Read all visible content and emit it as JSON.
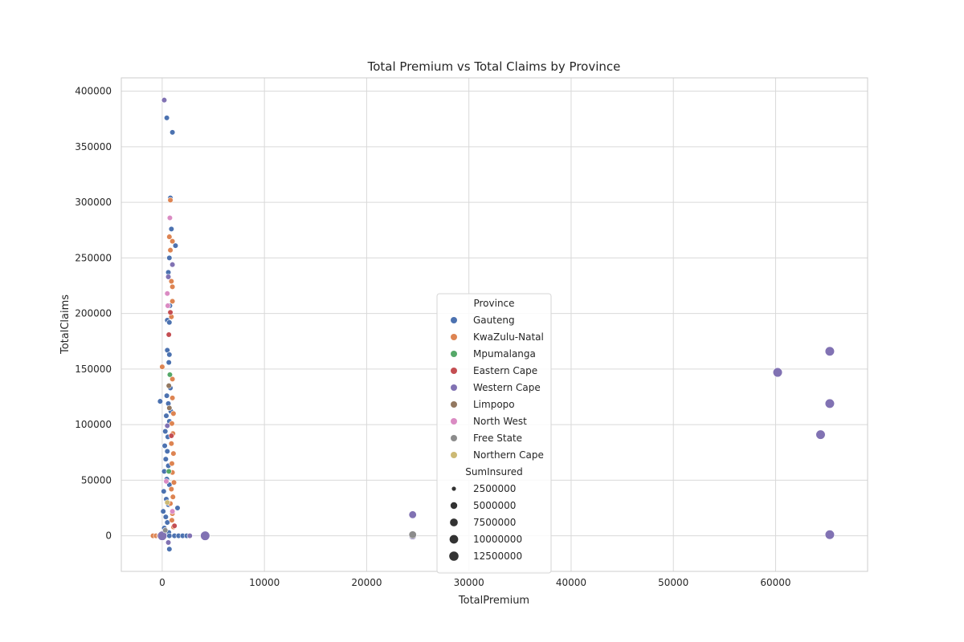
{
  "chart_data": {
    "type": "scatter",
    "title": "Total Premium vs Total Claims by Province",
    "xlabel": "TotalPremium",
    "ylabel": "TotalClaims",
    "xlim": [
      -4000,
      69000
    ],
    "ylim": [
      -32000,
      412000
    ],
    "xticks": [
      0,
      10000,
      20000,
      30000,
      40000,
      50000,
      60000
    ],
    "yticks": [
      0,
      50000,
      100000,
      150000,
      200000,
      250000,
      300000,
      350000,
      400000
    ],
    "grid": true,
    "legend_position": "center-bottom",
    "hue_title": "Province",
    "size_title": "SumInsured",
    "size_legend": [
      2500000,
      5000000,
      7500000,
      10000000,
      12500000
    ],
    "series": [
      {
        "name": "Gauteng",
        "color": "#4c72b0",
        "points": [
          [
            450,
            376000
          ],
          [
            1000,
            363000
          ],
          [
            800,
            304000
          ],
          [
            900,
            276000
          ],
          [
            1300,
            261000
          ],
          [
            700,
            250000
          ],
          [
            600,
            237000
          ],
          [
            750,
            207000
          ],
          [
            500,
            194000
          ],
          [
            700,
            192000
          ],
          [
            500,
            167000
          ],
          [
            700,
            163000
          ],
          [
            650,
            156000
          ],
          [
            450,
            126000
          ],
          [
            800,
            133000
          ],
          [
            -200,
            121000
          ],
          [
            600,
            119000
          ],
          [
            850,
            112000
          ],
          [
            400,
            108000
          ],
          [
            700,
            103000
          ],
          [
            300,
            94000
          ],
          [
            550,
            89000
          ],
          [
            250,
            81000
          ],
          [
            500,
            76000
          ],
          [
            350,
            69000
          ],
          [
            600,
            63000
          ],
          [
            200,
            58000
          ],
          [
            450,
            51000
          ],
          [
            700,
            46000
          ],
          [
            150,
            40000
          ],
          [
            400,
            33000
          ],
          [
            600,
            28000
          ],
          [
            100,
            22000
          ],
          [
            350,
            17000
          ],
          [
            500,
            12000
          ],
          [
            200,
            7000
          ],
          [
            650,
            3000
          ],
          [
            1500,
            25000
          ],
          [
            0,
            0
          ],
          [
            300,
            0
          ],
          [
            700,
            0
          ],
          [
            1200,
            0
          ],
          [
            1600,
            0
          ],
          [
            2000,
            0
          ],
          [
            2400,
            0
          ],
          [
            700,
            -12000
          ]
        ],
        "sizes": [
          3000000,
          3000000,
          3000000,
          3000000,
          3000000,
          3000000,
          3000000,
          3000000,
          3000000,
          3000000,
          3000000,
          3000000,
          3000000,
          3000000,
          3000000,
          3000000,
          3000000,
          3000000,
          3000000,
          3000000,
          3000000,
          3000000,
          3000000,
          3000000,
          3000000,
          3000000,
          3000000,
          3000000,
          3000000,
          3000000,
          3000000,
          3000000,
          3000000,
          3000000,
          3000000,
          3000000,
          3000000,
          3000000,
          3000000,
          3000000,
          3000000,
          3000000,
          3000000,
          3000000,
          3000000,
          3000000
        ]
      },
      {
        "name": "KwaZulu-Natal",
        "color": "#dd8452",
        "points": [
          [
            800,
            302000
          ],
          [
            700,
            269000
          ],
          [
            1000,
            265000
          ],
          [
            800,
            257000
          ],
          [
            900,
            229000
          ],
          [
            1000,
            224000
          ],
          [
            1000,
            211000
          ],
          [
            900,
            197000
          ],
          [
            0,
            152000
          ],
          [
            1000,
            141000
          ],
          [
            1000,
            124000
          ],
          [
            1100,
            110000
          ],
          [
            950,
            101000
          ],
          [
            1050,
            92000
          ],
          [
            900,
            83000
          ],
          [
            1100,
            74000
          ],
          [
            950,
            65000
          ],
          [
            1000,
            57000
          ],
          [
            1150,
            48000
          ],
          [
            900,
            42000
          ],
          [
            1050,
            35000
          ],
          [
            800,
            29000
          ],
          [
            1000,
            20000
          ],
          [
            950,
            14000
          ],
          [
            1100,
            8000
          ],
          [
            -900,
            0
          ],
          [
            -600,
            0
          ],
          [
            -300,
            0
          ]
        ],
        "sizes": [
          3000000,
          3000000,
          3000000,
          3000000,
          3000000,
          3000000,
          3000000,
          3000000,
          3000000,
          3000000,
          3000000,
          3000000,
          3000000,
          3000000,
          3000000,
          3000000,
          3000000,
          3000000,
          3000000,
          3000000,
          3000000,
          3000000,
          3000000,
          3000000,
          3000000,
          3000000,
          3000000,
          3000000
        ]
      },
      {
        "name": "Mpumalanga",
        "color": "#55a868",
        "points": [
          [
            750,
            145000
          ],
          [
            650,
            58000
          ]
        ],
        "sizes": [
          3000000,
          3000000
        ]
      },
      {
        "name": "Eastern Cape",
        "color": "#c44e52",
        "points": [
          [
            800,
            201000
          ],
          [
            650,
            181000
          ],
          [
            900,
            90000
          ],
          [
            1200,
            9000
          ]
        ],
        "sizes": [
          3000000,
          3000000,
          3000000,
          3000000
        ]
      },
      {
        "name": "Western Cape",
        "color": "#8172b3",
        "points": [
          [
            200,
            392000
          ],
          [
            1000,
            244000
          ],
          [
            600,
            233000
          ],
          [
            500,
            99000
          ],
          [
            600,
            -6000
          ],
          [
            4200,
            0
          ],
          [
            24500,
            19000
          ],
          [
            24500,
            0
          ],
          [
            60200,
            147000
          ],
          [
            65300,
            166000
          ],
          [
            65300,
            119000
          ],
          [
            64400,
            91000
          ],
          [
            65300,
            1000
          ],
          [
            0,
            0
          ],
          [
            2700,
            0
          ]
        ],
        "sizes": [
          3000000,
          3000000,
          3000000,
          3000000,
          3000000,
          12500000,
          7000000,
          7000000,
          12500000,
          12500000,
          12500000,
          12500000,
          12500000,
          12500000,
          3000000
        ]
      },
      {
        "name": "Limpopo",
        "color": "#937860",
        "points": [
          [
            650,
            135000
          ],
          [
            700,
            115000
          ]
        ],
        "sizes": [
          3000000,
          3000000
        ]
      },
      {
        "name": "North West",
        "color": "#da8bc3",
        "points": [
          [
            750,
            286000
          ],
          [
            500,
            218000
          ],
          [
            550,
            207000
          ],
          [
            400,
            49000
          ],
          [
            1000,
            22000
          ]
        ],
        "sizes": [
          3000000,
          3000000,
          3000000,
          3000000,
          3000000
        ]
      },
      {
        "name": "Free State",
        "color": "#8c8c8c",
        "points": [
          [
            300,
            5000
          ],
          [
            24500,
            1000
          ]
        ],
        "sizes": [
          3000000,
          7000000
        ]
      },
      {
        "name": "Northern Cape",
        "color": "#ccb974",
        "points": [
          [
            500,
            30000
          ]
        ],
        "sizes": [
          3000000
        ]
      }
    ]
  }
}
